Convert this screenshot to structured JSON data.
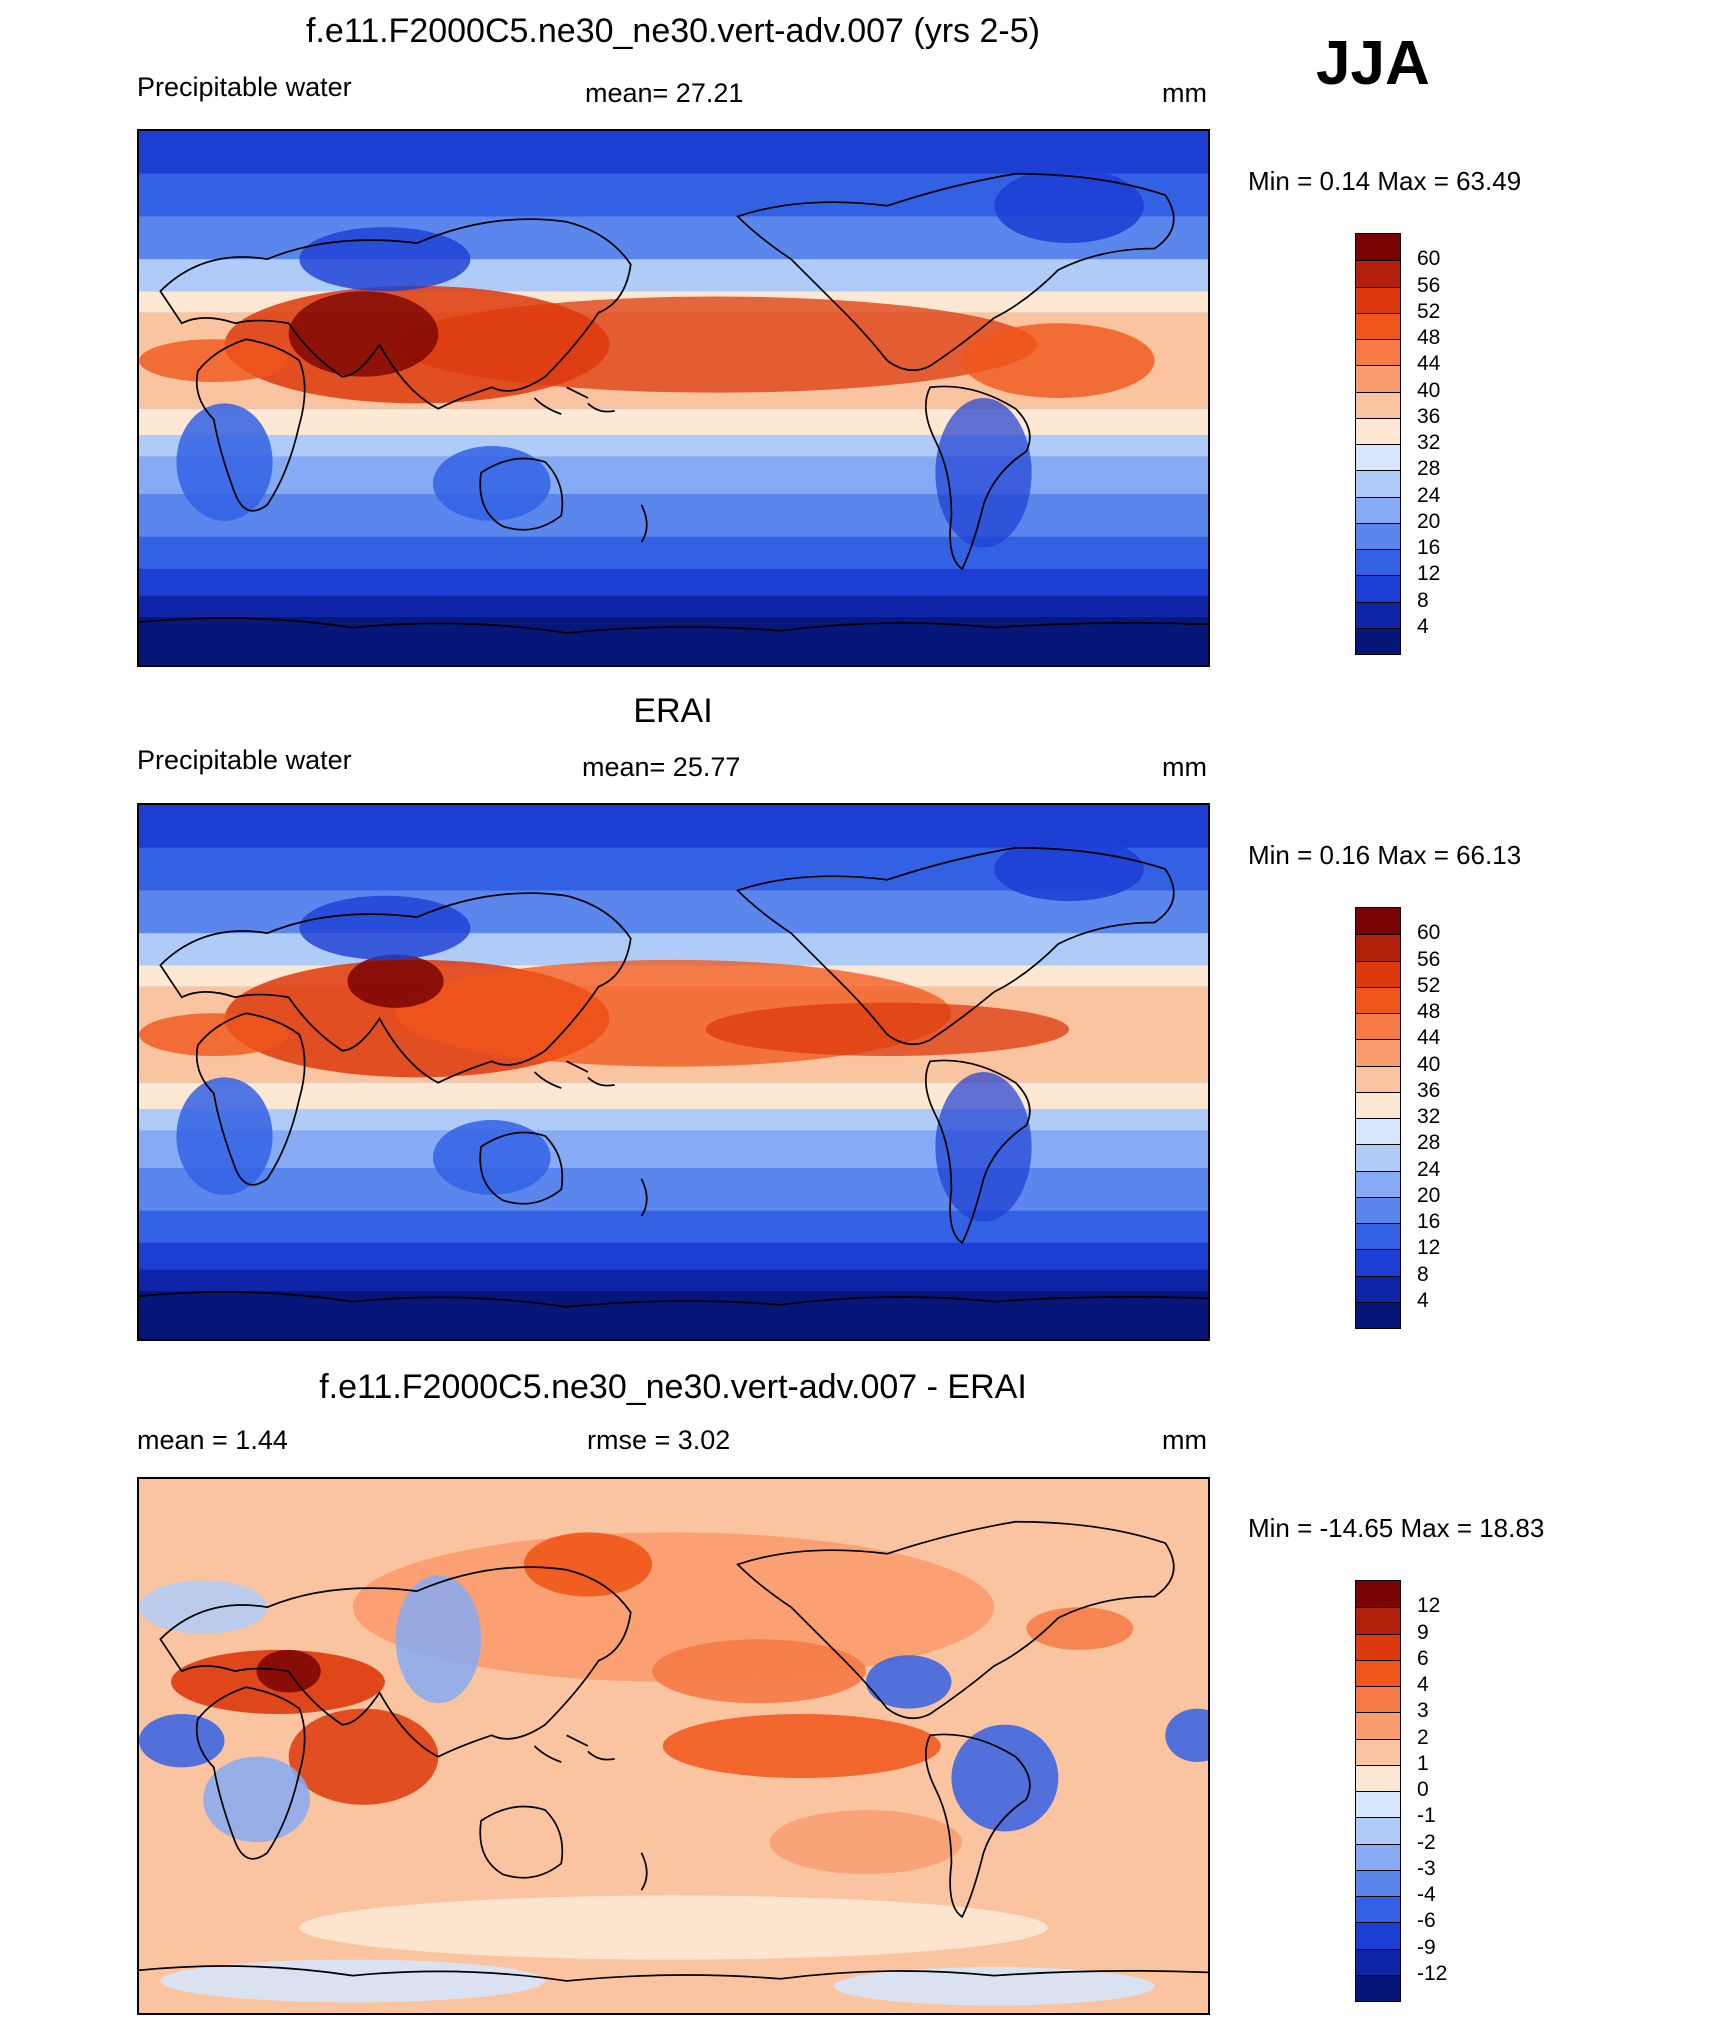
{
  "season": "JJA",
  "panels": [
    {
      "title": "f.e11.F2000C5.ne30_ne30.vert-adv.007 (yrs 2-5)",
      "left": "Precipitable water",
      "center": "mean=  27.21",
      "units": "mm",
      "minmax": "Min =   0.14 Max =  63.49",
      "field": "precipitable-water-model",
      "mean": 27.21,
      "min": 0.14,
      "max": 63.49
    },
    {
      "title": "ERAI",
      "left": "Precipitable water",
      "center": "mean=  25.77",
      "units": "mm",
      "minmax": "Min =   0.16 Max =  66.13",
      "field": "precipitable-water-erai",
      "mean": 25.77,
      "min": 0.16,
      "max": 66.13
    },
    {
      "title": "f.e11.F2000C5.ne30_ne30.vert-adv.007 - ERAI",
      "left": "mean =   1.44",
      "center": "rmse =   3.02",
      "units": "mm",
      "minmax": "Min = -14.65 Max =  18.83",
      "field": "difference",
      "mean": 1.44,
      "rmse": 3.02,
      "min": -14.65,
      "max": 18.83
    }
  ],
  "colorbars": {
    "absolute": {
      "labels": [
        "60",
        "56",
        "52",
        "48",
        "44",
        "40",
        "36",
        "32",
        "28",
        "24",
        "20",
        "16",
        "12",
        "8",
        "4"
      ],
      "colors": [
        "#7a0403",
        "#b3200b",
        "#dc3a0c",
        "#f0561a",
        "#f57a45",
        "#f99c6e",
        "#fbc4a1",
        "#fde8d4",
        "#d6e6fb",
        "#afccf8",
        "#86aaf3",
        "#5b86ec",
        "#3261e4",
        "#1c3ed3",
        "#0f25a8",
        "#071679"
      ]
    },
    "difference": {
      "labels": [
        "12",
        "9",
        "6",
        "4",
        "3",
        "2",
        "1",
        "0",
        "-1",
        "-2",
        "-3",
        "-4",
        "-6",
        "-9",
        "-12"
      ],
      "colors": [
        "#7a0403",
        "#b3200b",
        "#dc3a0c",
        "#f0561a",
        "#f57a45",
        "#f99c6e",
        "#fbc4a1",
        "#fde8d4",
        "#d6e6fb",
        "#afccf8",
        "#86aaf3",
        "#5b86ec",
        "#3261e4",
        "#1c3ed3",
        "#0f25a8",
        "#071679"
      ]
    }
  }
}
